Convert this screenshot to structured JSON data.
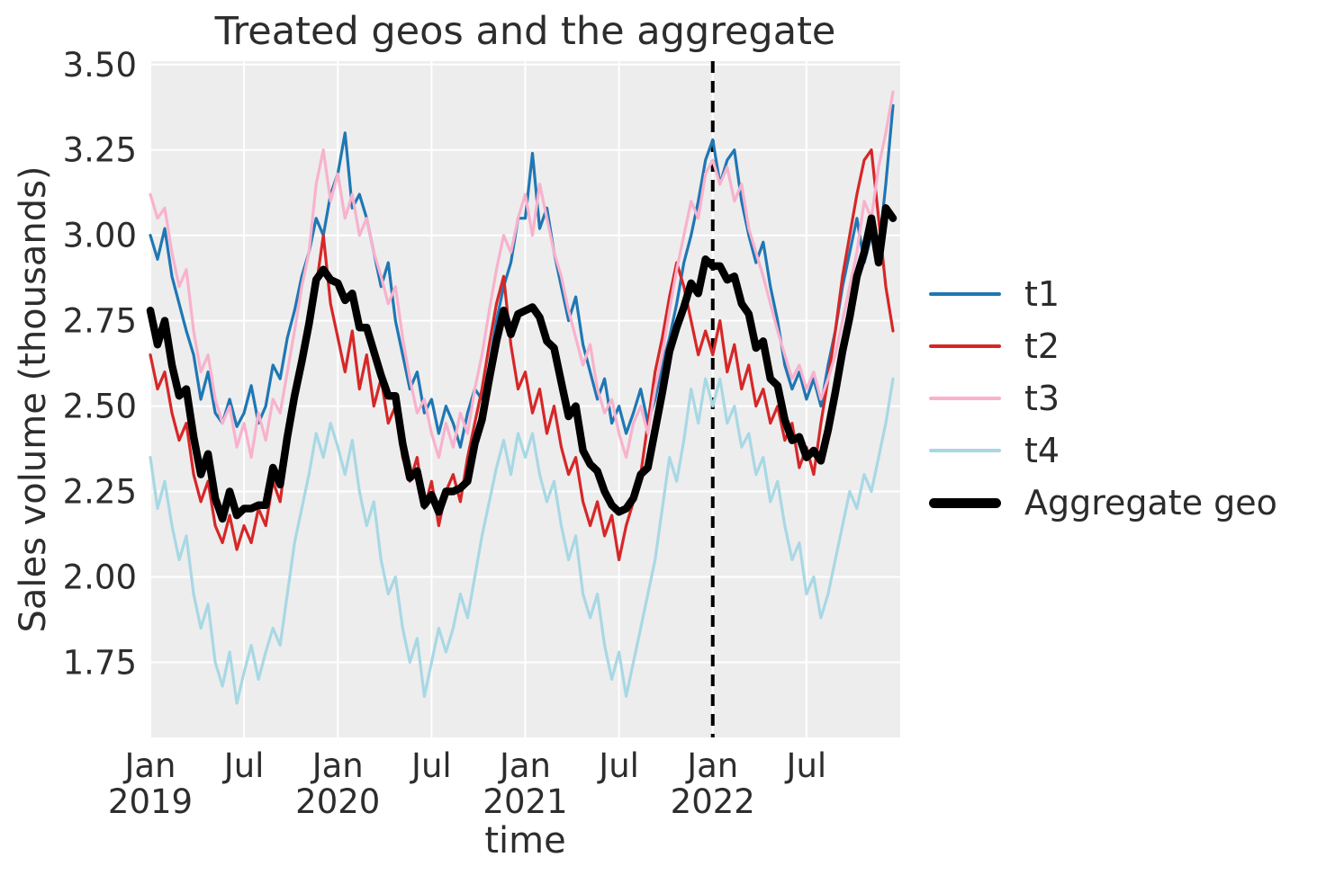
{
  "chart_data": {
    "type": "line",
    "title": "Treated geos and the aggregate",
    "xlabel": "time",
    "ylabel": "Sales volume (thousands)",
    "grid": true,
    "legend_position": "right",
    "plot_bg_color": "#ededed",
    "grid_color": "#ffffff",
    "text_color": "#2d2d2d",
    "ylim": [
      1.53,
      3.51
    ],
    "x_range": {
      "start": "2019-01",
      "end": "2022-12",
      "points": 104,
      "cadence": "biweekly (estimated from weekly series)"
    },
    "x_ticks": [
      {
        "top": "Jan",
        "bottom": "2019",
        "frac": 0.0
      },
      {
        "top": "Jul",
        "bottom": "",
        "frac": 0.125
      },
      {
        "top": "Jan",
        "bottom": "2020",
        "frac": 0.25
      },
      {
        "top": "Jul",
        "bottom": "",
        "frac": 0.375
      },
      {
        "top": "Jan",
        "bottom": "2021",
        "frac": 0.5
      },
      {
        "top": "Jul",
        "bottom": "",
        "frac": 0.625
      },
      {
        "top": "Jan",
        "bottom": "2022",
        "frac": 0.75
      },
      {
        "top": "Jul",
        "bottom": "",
        "frac": 0.875
      }
    ],
    "y_ticks": [
      {
        "label": "1.75",
        "value": 1.75
      },
      {
        "label": "2.00",
        "value": 2.0
      },
      {
        "label": "2.25",
        "value": 2.25
      },
      {
        "label": "2.50",
        "value": 2.5
      },
      {
        "label": "2.75",
        "value": 2.75
      },
      {
        "label": "3.00",
        "value": 3.0
      },
      {
        "label": "3.25",
        "value": 3.25
      },
      {
        "label": "3.50",
        "value": 3.5
      }
    ],
    "treatment_marker": {
      "type": "vline",
      "at_tick": "Jan 2022",
      "frac": 0.75,
      "style": "dashed",
      "color": "#000000"
    },
    "series": [
      {
        "name": "t1",
        "color": "#1f77b4",
        "line_width": 3.2,
        "values": [
          3.0,
          2.93,
          3.02,
          2.88,
          2.8,
          2.72,
          2.65,
          2.52,
          2.6,
          2.48,
          2.45,
          2.52,
          2.44,
          2.48,
          2.56,
          2.45,
          2.5,
          2.62,
          2.58,
          2.7,
          2.78,
          2.88,
          2.95,
          3.05,
          3.0,
          3.12,
          3.18,
          3.3,
          3.08,
          3.12,
          3.05,
          2.95,
          2.85,
          2.92,
          2.75,
          2.65,
          2.55,
          2.6,
          2.48,
          2.52,
          2.42,
          2.5,
          2.45,
          2.38,
          2.48,
          2.55,
          2.52,
          2.62,
          2.75,
          2.85,
          2.92,
          3.05,
          3.05,
          3.24,
          3.02,
          3.08,
          2.95,
          2.85,
          2.75,
          2.82,
          2.68,
          2.6,
          2.52,
          2.58,
          2.45,
          2.5,
          2.42,
          2.48,
          2.55,
          2.45,
          2.52,
          2.62,
          2.7,
          2.8,
          2.92,
          3.0,
          3.1,
          3.22,
          3.28,
          3.15,
          3.22,
          3.25,
          3.1,
          3.0,
          2.92,
          2.98,
          2.85,
          2.75,
          2.62,
          2.55,
          2.6,
          2.52,
          2.58,
          2.5,
          2.62,
          2.72,
          2.85,
          2.95,
          3.05,
          2.92,
          3.0,
          2.95,
          3.15,
          3.38
        ]
      },
      {
        "name": "t2",
        "color": "#d62728",
        "line_width": 3.2,
        "values": [
          2.65,
          2.55,
          2.6,
          2.48,
          2.4,
          2.45,
          2.3,
          2.22,
          2.28,
          2.15,
          2.1,
          2.18,
          2.08,
          2.15,
          2.1,
          2.2,
          2.15,
          2.28,
          2.22,
          2.38,
          2.5,
          2.6,
          2.75,
          2.85,
          3.0,
          2.8,
          2.7,
          2.6,
          2.72,
          2.55,
          2.65,
          2.5,
          2.58,
          2.45,
          2.5,
          2.35,
          2.28,
          2.35,
          2.2,
          2.28,
          2.15,
          2.25,
          2.3,
          2.22,
          2.35,
          2.45,
          2.55,
          2.68,
          2.8,
          2.88,
          2.68,
          2.55,
          2.6,
          2.48,
          2.55,
          2.42,
          2.5,
          2.38,
          2.3,
          2.35,
          2.22,
          2.15,
          2.22,
          2.12,
          2.18,
          2.05,
          2.15,
          2.22,
          2.3,
          2.45,
          2.6,
          2.7,
          2.82,
          2.92,
          2.85,
          2.75,
          2.65,
          2.72,
          2.65,
          2.75,
          2.6,
          2.68,
          2.55,
          2.62,
          2.5,
          2.55,
          2.45,
          2.5,
          2.4,
          2.45,
          2.32,
          2.38,
          2.3,
          2.45,
          2.58,
          2.72,
          2.88,
          3.0,
          3.12,
          3.22,
          3.25,
          3.05,
          2.85,
          2.72
        ]
      },
      {
        "name": "t3",
        "color": "#f8b2cd",
        "line_width": 3.2,
        "values": [
          3.12,
          3.05,
          3.08,
          2.95,
          2.85,
          2.9,
          2.72,
          2.6,
          2.65,
          2.52,
          2.45,
          2.5,
          2.38,
          2.45,
          2.35,
          2.48,
          2.4,
          2.52,
          2.48,
          2.6,
          2.72,
          2.85,
          2.95,
          3.15,
          3.25,
          3.1,
          3.18,
          3.05,
          3.12,
          3.0,
          3.05,
          2.95,
          2.88,
          2.8,
          2.85,
          2.7,
          2.58,
          2.48,
          2.52,
          2.42,
          2.35,
          2.45,
          2.38,
          2.48,
          2.42,
          2.55,
          2.65,
          2.78,
          2.9,
          3.0,
          2.95,
          3.05,
          3.12,
          3.0,
          3.15,
          3.05,
          2.95,
          2.88,
          2.78,
          2.7,
          2.62,
          2.68,
          2.55,
          2.48,
          2.52,
          2.42,
          2.35,
          2.45,
          2.5,
          2.42,
          2.55,
          2.65,
          2.78,
          2.9,
          3.0,
          3.1,
          3.05,
          3.18,
          3.22,
          3.15,
          3.2,
          3.1,
          3.15,
          3.02,
          2.95,
          2.88,
          2.8,
          2.72,
          2.65,
          2.58,
          2.62,
          2.55,
          2.6,
          2.52,
          2.58,
          2.65,
          2.75,
          2.85,
          2.95,
          3.1,
          3.05,
          3.2,
          3.3,
          3.42
        ]
      },
      {
        "name": "t4",
        "color": "#a8d8e4",
        "line_width": 3.2,
        "values": [
          2.35,
          2.2,
          2.28,
          2.15,
          2.05,
          2.12,
          1.95,
          1.85,
          1.92,
          1.75,
          1.68,
          1.78,
          1.63,
          1.72,
          1.8,
          1.7,
          1.78,
          1.85,
          1.8,
          1.95,
          2.1,
          2.2,
          2.3,
          2.42,
          2.35,
          2.45,
          2.38,
          2.3,
          2.4,
          2.25,
          2.15,
          2.22,
          2.05,
          1.95,
          2.0,
          1.85,
          1.75,
          1.82,
          1.65,
          1.75,
          1.85,
          1.78,
          1.85,
          1.95,
          1.88,
          2.0,
          2.12,
          2.22,
          2.32,
          2.4,
          2.3,
          2.42,
          2.35,
          2.42,
          2.3,
          2.22,
          2.28,
          2.15,
          2.05,
          2.12,
          1.95,
          1.88,
          1.95,
          1.8,
          1.7,
          1.78,
          1.65,
          1.75,
          1.85,
          1.95,
          2.05,
          2.2,
          2.35,
          2.28,
          2.4,
          2.55,
          2.45,
          2.58,
          2.5,
          2.58,
          2.45,
          2.5,
          2.38,
          2.42,
          2.3,
          2.35,
          2.22,
          2.28,
          2.15,
          2.05,
          2.1,
          1.95,
          2.0,
          1.88,
          1.95,
          2.05,
          2.15,
          2.25,
          2.2,
          2.3,
          2.25,
          2.35,
          2.45,
          2.58
        ]
      },
      {
        "name": "Aggregate geo",
        "color": "#000000",
        "line_width": 8.5,
        "values": [
          2.78,
          2.68,
          2.75,
          2.62,
          2.53,
          2.55,
          2.41,
          2.3,
          2.36,
          2.23,
          2.17,
          2.25,
          2.18,
          2.2,
          2.2,
          2.21,
          2.21,
          2.32,
          2.27,
          2.41,
          2.53,
          2.63,
          2.74,
          2.87,
          2.9,
          2.87,
          2.86,
          2.81,
          2.83,
          2.73,
          2.73,
          2.66,
          2.59,
          2.53,
          2.53,
          2.39,
          2.29,
          2.31,
          2.21,
          2.24,
          2.19,
          2.25,
          2.25,
          2.26,
          2.28,
          2.39,
          2.46,
          2.58,
          2.69,
          2.78,
          2.71,
          2.77,
          2.78,
          2.79,
          2.76,
          2.69,
          2.67,
          2.57,
          2.47,
          2.5,
          2.37,
          2.33,
          2.31,
          2.25,
          2.21,
          2.19,
          2.2,
          2.23,
          2.3,
          2.32,
          2.43,
          2.54,
          2.66,
          2.73,
          2.79,
          2.86,
          2.83,
          2.93,
          2.91,
          2.91,
          2.87,
          2.88,
          2.8,
          2.77,
          2.67,
          2.69,
          2.58,
          2.56,
          2.46,
          2.4,
          2.41,
          2.35,
          2.37,
          2.34,
          2.43,
          2.54,
          2.66,
          2.76,
          2.88,
          2.95,
          3.05,
          2.92,
          3.08,
          3.05
        ]
      }
    ]
  }
}
